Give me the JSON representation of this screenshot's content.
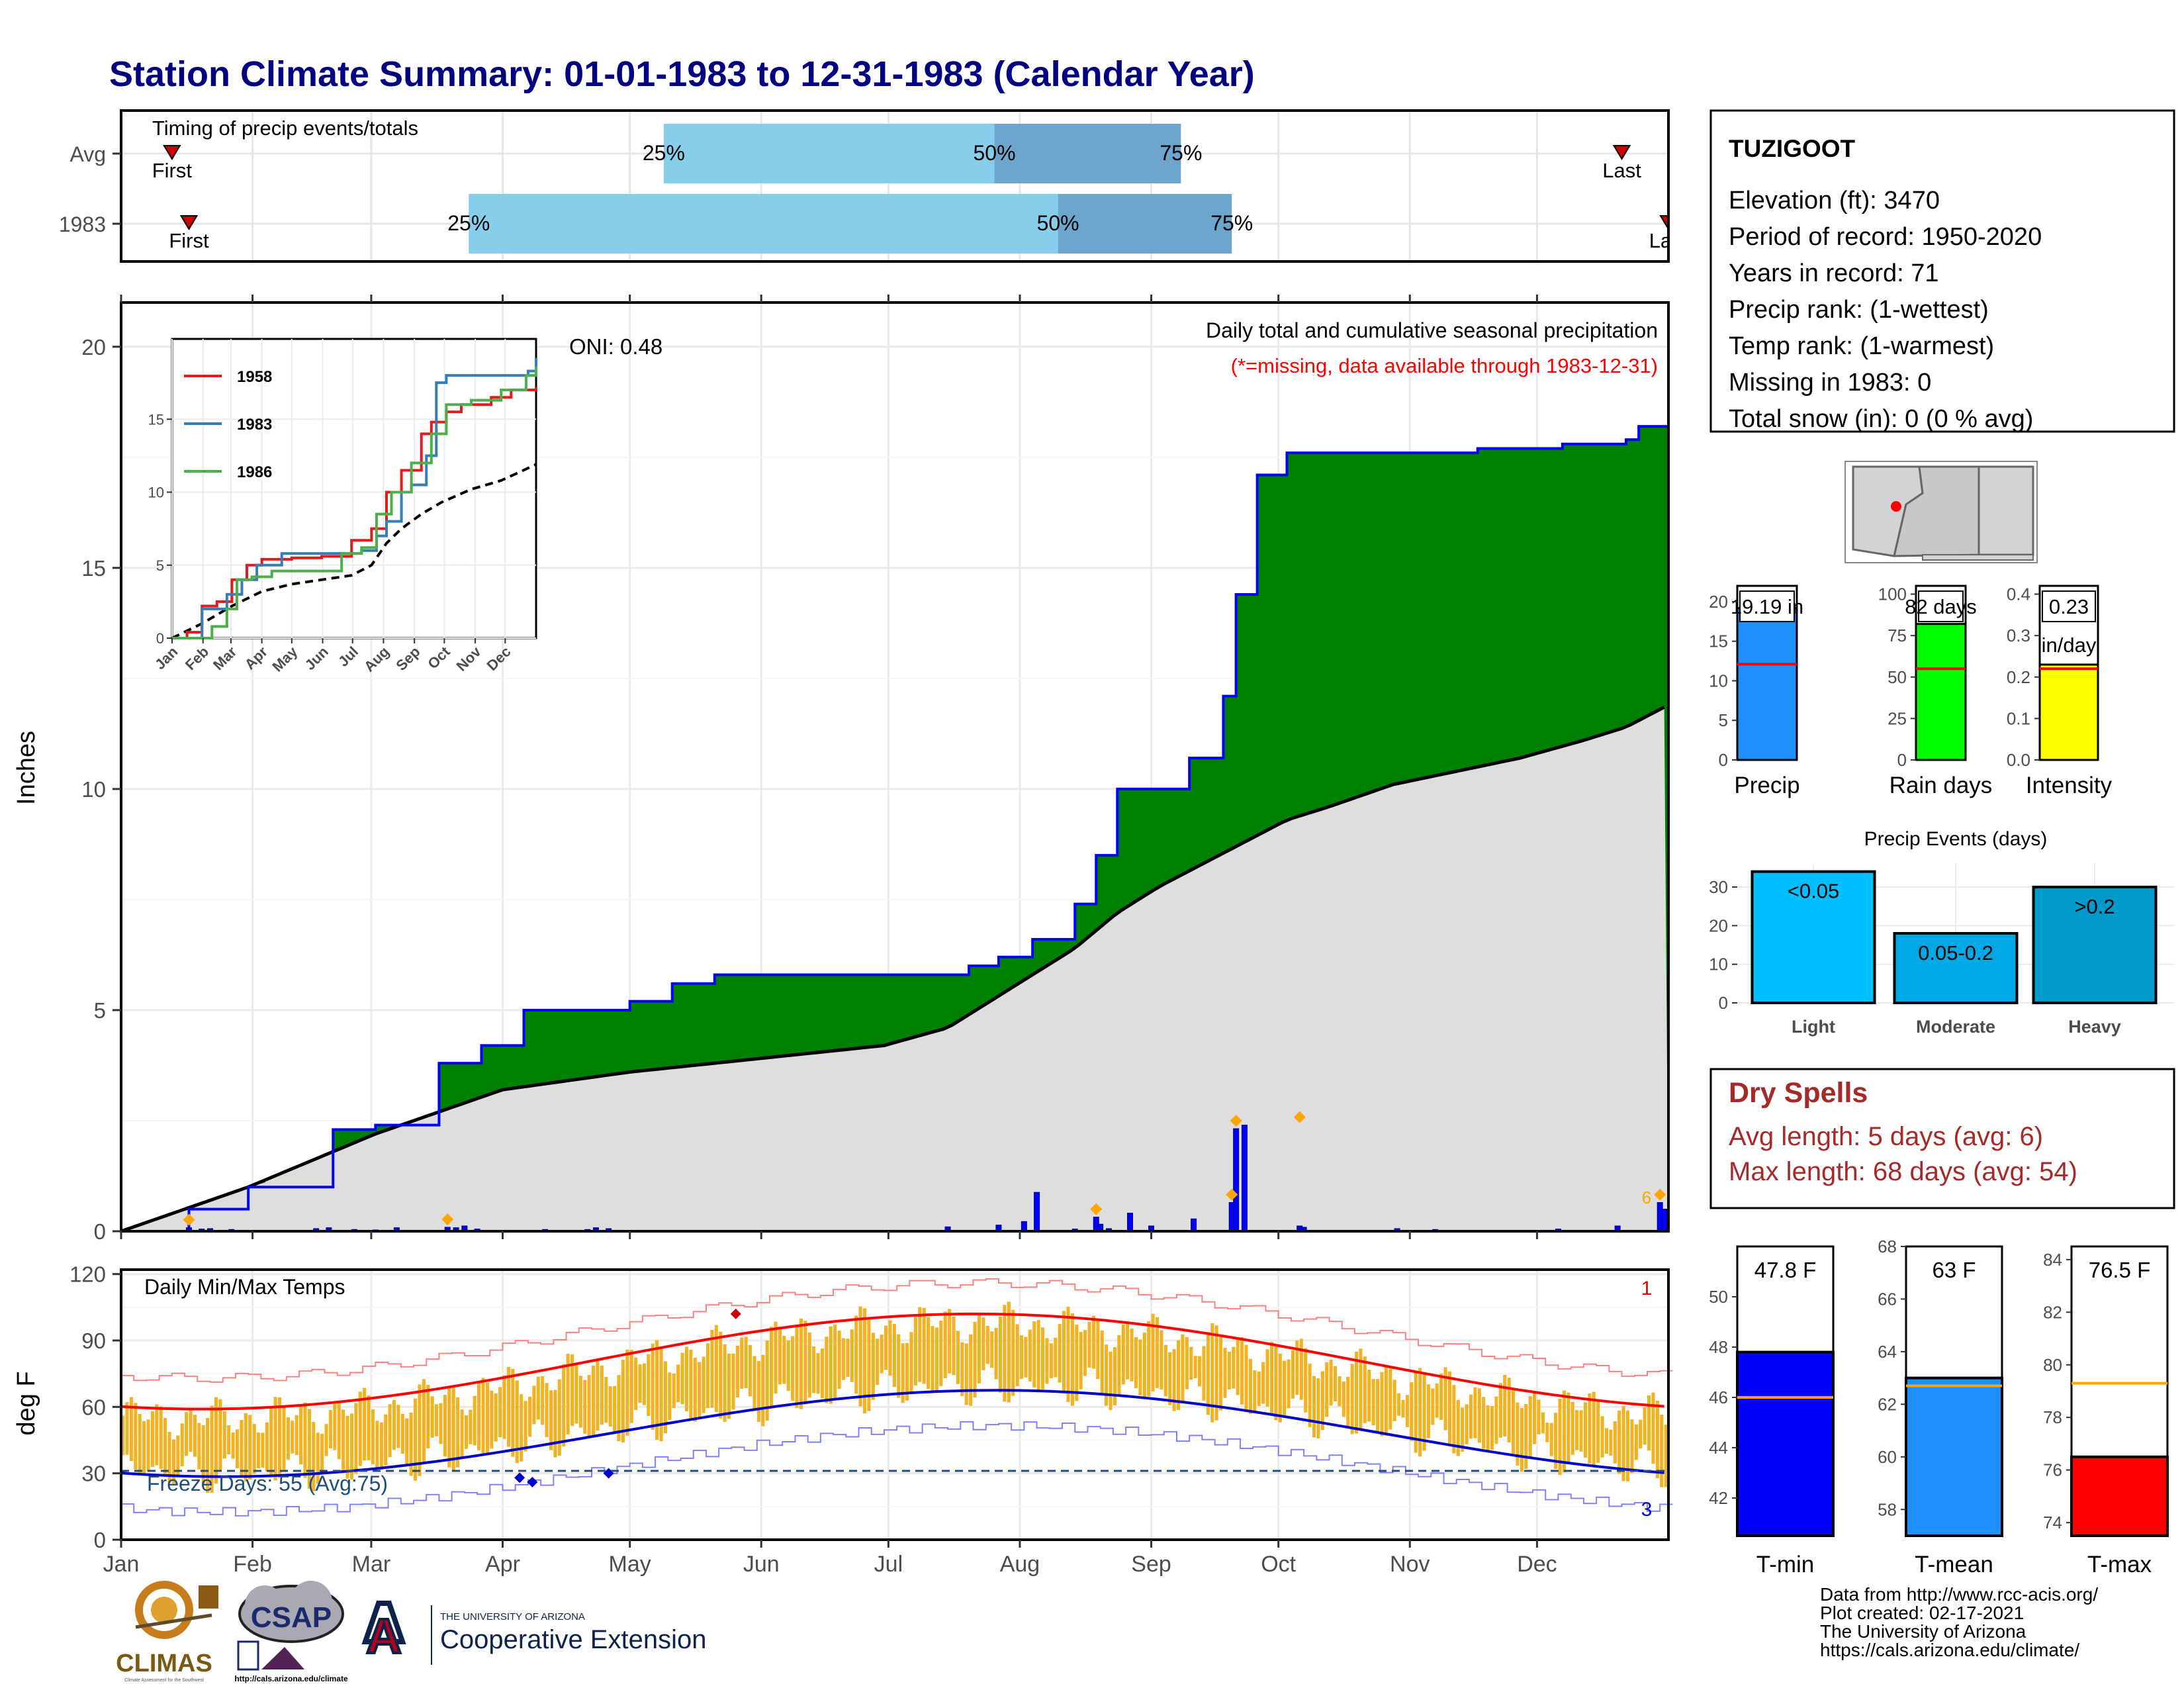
{
  "title": "Station Climate Summary: 01-01-1983 to 12-31-1983 (Calendar Year)",
  "months": [
    "Jan",
    "Feb",
    "Mar",
    "Apr",
    "May",
    "Jun",
    "Jul",
    "Aug",
    "Sep",
    "Oct",
    "Nov",
    "Dec"
  ],
  "timing": {
    "label": "Timing of precip events/totals",
    "rows": [
      {
        "name": "Avg",
        "first_doy": 12,
        "q25_doy": 128,
        "q50_doy": 206,
        "q75_doy": 250,
        "last_doy": 354,
        "first_label": "First",
        "last_label": "Last",
        "q25_label": "25%",
        "q50_label": "50%",
        "q75_label": "75%"
      },
      {
        "name": "1983",
        "first_doy": 16,
        "q25_doy": 82,
        "q50_doy": 221,
        "q75_doy": 262,
        "last_doy": 365,
        "first_label": "First",
        "last_label": "Last",
        "q25_label": "25%",
        "q50_label": "50%",
        "q75_label": "75%"
      }
    ],
    "colors": {
      "light": "#87ceeb",
      "dark": "#6ca6cd",
      "marker": "#cc0000"
    }
  },
  "precip_panel": {
    "ylabel": "Inches",
    "title": "Daily total and cumulative seasonal precipitation",
    "missing_note": "(*=missing, data available through 1983-12-31)",
    "oni": "ONI: 0.48",
    "count_label": "6",
    "yticks": [
      "0",
      "5",
      "10",
      "15",
      "20"
    ],
    "ylim": [
      0,
      21
    ],
    "colors": {
      "cumulative_fill": "#008000",
      "cumulative_line": "#0000ff",
      "avg_fill": "#dedede",
      "winter_fill": "#8b5a14",
      "daily_bar": "#0000ff",
      "extreme_marker": "#ffa500"
    }
  },
  "inset": {
    "yticks": [
      "0",
      "5",
      "10",
      "15"
    ],
    "months": [
      "Jan",
      "Feb",
      "Mar",
      "Apr",
      "May",
      "Jun",
      "Jul",
      "Aug",
      "Sep",
      "Oct",
      "Nov",
      "Dec"
    ],
    "series": [
      {
        "name": "1958",
        "color": "#e41a1c",
        "points": [
          [
            0,
            0
          ],
          [
            15,
            0.4
          ],
          [
            30,
            2.2
          ],
          [
            45,
            2.5
          ],
          [
            60,
            4.0
          ],
          [
            75,
            5.0
          ],
          [
            90,
            5.4
          ],
          [
            120,
            5.5
          ],
          [
            150,
            5.6
          ],
          [
            180,
            6.7
          ],
          [
            200,
            7.5
          ],
          [
            215,
            10.0
          ],
          [
            230,
            11.5
          ],
          [
            250,
            14.0
          ],
          [
            260,
            14.8
          ],
          [
            275,
            15.5
          ],
          [
            290,
            16.0
          ],
          [
            320,
            16.5
          ],
          [
            340,
            17.0
          ],
          [
            365,
            17.2
          ]
        ]
      },
      {
        "name": "1983",
        "color": "#377eb8",
        "points": [
          [
            0,
            0
          ],
          [
            30,
            2.0
          ],
          [
            55,
            3.0
          ],
          [
            70,
            4.0
          ],
          [
            85,
            5.0
          ],
          [
            110,
            5.8
          ],
          [
            150,
            5.8
          ],
          [
            190,
            6.0
          ],
          [
            205,
            7.0
          ],
          [
            215,
            8.0
          ],
          [
            230,
            10.0
          ],
          [
            240,
            10.5
          ],
          [
            255,
            12.5
          ],
          [
            265,
            17.5
          ],
          [
            275,
            18.0
          ],
          [
            300,
            18.0
          ],
          [
            335,
            18.0
          ],
          [
            357,
            18.3
          ],
          [
            365,
            19.2
          ]
        ]
      },
      {
        "name": "1986",
        "color": "#4daf4a",
        "points": [
          [
            0,
            0
          ],
          [
            40,
            0.8
          ],
          [
            55,
            2.0
          ],
          [
            65,
            4.0
          ],
          [
            80,
            4.2
          ],
          [
            100,
            4.6
          ],
          [
            130,
            4.6
          ],
          [
            155,
            4.6
          ],
          [
            170,
            5.8
          ],
          [
            190,
            6.2
          ],
          [
            205,
            8.5
          ],
          [
            220,
            10.0
          ],
          [
            240,
            12.0
          ],
          [
            260,
            14.0
          ],
          [
            275,
            16.0
          ],
          [
            300,
            16.3
          ],
          [
            330,
            17.0
          ],
          [
            355,
            18.0
          ],
          [
            365,
            18.6
          ]
        ]
      }
    ],
    "avg_points": [
      [
        0,
        0
      ],
      [
        30,
        1.0
      ],
      [
        60,
        2.2
      ],
      [
        90,
        3.2
      ],
      [
        120,
        3.7
      ],
      [
        150,
        4.0
      ],
      [
        180,
        4.3
      ],
      [
        200,
        5.0
      ],
      [
        215,
        6.5
      ],
      [
        230,
        7.5
      ],
      [
        250,
        8.5
      ],
      [
        270,
        9.3
      ],
      [
        300,
        10.2
      ],
      [
        330,
        10.8
      ],
      [
        365,
        11.9
      ]
    ]
  },
  "chart_data": [
    {
      "type": "area",
      "title": "Daily total and cumulative seasonal precipitation",
      "xlabel": "",
      "ylabel": "Inches",
      "ylim": [
        0,
        21
      ],
      "series": [
        {
          "name": "1983",
          "x_doy": [
            0,
            16,
            30,
            50,
            60,
            75,
            85,
            95,
            110,
            120,
            130,
            140,
            150,
            160,
            170,
            180,
            190,
            200,
            207,
            215,
            225,
            230,
            235,
            240,
            252,
            260,
            263,
            268,
            275,
            280,
            300,
            320,
            340,
            355,
            358,
            365
          ],
          "values": [
            0,
            0.5,
            1.0,
            2.3,
            2.4,
            3.8,
            4.2,
            5.0,
            5.0,
            5.2,
            5.6,
            5.8,
            5.8,
            5.8,
            5.8,
            5.8,
            5.8,
            6.0,
            6.2,
            6.6,
            7.4,
            8.5,
            10.0,
            10.0,
            10.7,
            12.1,
            14.4,
            17.1,
            17.6,
            17.6,
            17.6,
            17.7,
            17.8,
            17.9,
            18.2,
            19.2
          ]
        },
        {
          "name": "",
          "x_doy": [
            0,
            30,
            60,
            90,
            120,
            150,
            180,
            195,
            205,
            215,
            225,
            235,
            245,
            255,
            265,
            275,
            285,
            300,
            315,
            330,
            345,
            355,
            365
          ],
          "values": [
            0,
            1.0,
            2.2,
            3.2,
            3.6,
            3.9,
            4.2,
            4.6,
            5.2,
            5.8,
            6.4,
            7.2,
            7.8,
            8.3,
            8.8,
            9.3,
            9.6,
            10.1,
            10.4,
            10.7,
            11.1,
            11.4,
            11.9
          ]
        }
      ],
      "daily_x_doy": [
        16,
        19,
        21,
        26,
        46,
        49,
        55,
        60,
        65,
        77,
        79,
        81,
        84,
        100,
        110,
        112,
        115,
        195,
        207,
        213,
        216,
        225,
        230,
        231,
        233,
        238,
        243,
        253,
        262,
        263,
        265,
        278,
        279,
        301,
        310,
        339,
        353,
        363,
        364
      ],
      "daily_values": [
        0.08,
        0.05,
        0.06,
        0.04,
        0.06,
        0.08,
        0.04,
        0.03,
        0.08,
        0.09,
        0.08,
        0.12,
        0.05,
        0.04,
        0.04,
        0.08,
        0.06,
        0.1,
        0.14,
        0.22,
        0.88,
        0.05,
        0.32,
        0.16,
        0.06,
        0.41,
        0.12,
        0.28,
        0.65,
        2.32,
        2.4,
        0.12,
        0.09,
        0.06,
        0.04,
        0.05,
        0.12,
        0.65,
        0.5
      ]
    },
    {
      "type": "line",
      "title": "Daily Min/Max Temps",
      "ylabel": "deg F",
      "ylim": [
        0,
        122
      ],
      "freeze_line": 32,
      "freeze_days_label": "Freeze Days: 55 (Avg:75)",
      "record_high_count": "1",
      "record_low_count": "3"
    },
    {
      "type": "bar",
      "categories": [
        "Precip",
        "Rain days",
        "Intensity"
      ],
      "values": [
        19.19,
        82,
        0.23
      ],
      "averages": [
        12.1,
        55,
        0.22
      ],
      "value_labels": [
        "19.19 in",
        "82 days",
        "0.23"
      ],
      "unit_labels": [
        "",
        "",
        "in/day"
      ],
      "ylims": [
        [
          0,
          22
        ],
        [
          0,
          105
        ],
        [
          0,
          0.42
        ]
      ],
      "yticks": [
        [
          "0",
          "5",
          "10",
          "15",
          "20"
        ],
        [
          "0",
          "25",
          "50",
          "75",
          "100"
        ],
        [
          "0.0",
          "0.1",
          "0.2",
          "0.3",
          "0.4"
        ]
      ],
      "colors": [
        "#1e90ff",
        "#00ff00",
        "#ffff00"
      ]
    },
    {
      "type": "bar",
      "title": "Precip Events (days)",
      "categories": [
        "Light",
        "Moderate",
        "Heavy"
      ],
      "values": [
        34,
        18,
        30
      ],
      "value_labels": [
        "<0.05",
        "0.05-0.2",
        ">0.2"
      ],
      "ylim": [
        0,
        36
      ],
      "yticks": [
        "0",
        "10",
        "20",
        "30"
      ],
      "colors": [
        "#00bfff",
        "#00a9e6",
        "#0099cc"
      ]
    },
    {
      "type": "bar",
      "categories": [
        "T-min",
        "T-mean",
        "T-max"
      ],
      "values": [
        47.8,
        63,
        76.5
      ],
      "averages": [
        46.0,
        62.7,
        79.3
      ],
      "value_labels": [
        "47.8 F",
        "63 F",
        "76.5 F"
      ],
      "ylims": [
        [
          40.5,
          52
        ],
        [
          57,
          68
        ],
        [
          73.5,
          84.5
        ]
      ],
      "yticks": [
        [
          "42",
          "44",
          "46",
          "48",
          "50"
        ],
        [
          "58",
          "60",
          "62",
          "64",
          "66",
          "68"
        ],
        [
          "74",
          "76",
          "78",
          "80",
          "82",
          "84"
        ]
      ],
      "colors": [
        "#0000ff",
        "#1e90ff",
        "#ff0000"
      ]
    }
  ],
  "temp_panel": {
    "title": "Daily Min/Max Temps",
    "ylabel": "deg F",
    "yticks": [
      "0",
      "30",
      "60",
      "90",
      "120"
    ],
    "freeze_label": "Freeze Days: 55 (Avg:75)",
    "record_high_count": "1",
    "record_low_count": "3",
    "colors": {
      "bar": "#f0b323",
      "normal_max": "#ff0000",
      "normal_min": "#0000cc",
      "record_max": "#ff8080",
      "record_min": "#8080ff",
      "freeze_line": "#1f4e79"
    }
  },
  "station": {
    "name": "TUZIGOOT",
    "lines": [
      "Elevation (ft): 3470",
      "Period of record: 1950-2020",
      "Years in record: 71",
      "Precip rank:  (1-wettest)",
      "Temp rank:  (1-warmest)",
      "Missing in 1983: 0",
      "Total snow (in): 0 (0 % avg)"
    ]
  },
  "dry_spells": {
    "title": "Dry Spells",
    "avg": "Avg length: 5 days (avg: 6)",
    "max": "Max length: 68 days (avg: 54)",
    "color": "#a52a2a"
  },
  "credits": [
    "Data from http://www.rcc-acis.org/",
    "Plot created: 02-17-2021",
    "The University of Arizona",
    "https://cals.arizona.edu/climate/"
  ],
  "logos": {
    "climas": "CLIMAS",
    "climas_sub": "Climate Assessment for the Southwest",
    "csap": "CSAP",
    "csap_url": "http://cals.arizona.edu/climate",
    "ua_letter": "A",
    "ua_small": "THE UNIVERSITY OF ARIZONA",
    "ua_large": "Cooperative Extension"
  }
}
